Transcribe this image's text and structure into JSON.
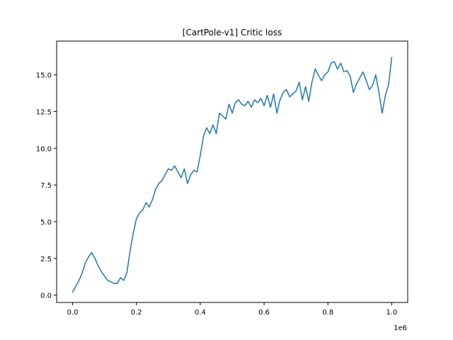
{
  "chart_data": {
    "type": "line",
    "title": "[CartPole-v1] Critic loss",
    "xlabel": "",
    "ylabel": "",
    "x_offset_label": "1e6",
    "xlim": [
      -0.05,
      1.05
    ],
    "ylim": [
      -0.5,
      17.3
    ],
    "xticks": [
      0.0,
      0.2,
      0.4,
      0.6,
      0.8,
      1.0
    ],
    "xtick_labels": [
      "0.0",
      "0.2",
      "0.4",
      "0.6",
      "0.8",
      "1.0"
    ],
    "yticks": [
      0.0,
      2.5,
      5.0,
      7.5,
      10.0,
      12.5,
      15.0
    ],
    "ytick_labels": [
      "0.0",
      "2.5",
      "5.0",
      "7.5",
      "10.0",
      "12.5",
      "15.0"
    ],
    "grid": false,
    "series": [
      {
        "name": "",
        "color": "#1f77b4",
        "x": [
          0.0,
          0.01,
          0.02,
          0.03,
          0.04,
          0.05,
          0.06,
          0.07,
          0.08,
          0.09,
          0.1,
          0.11,
          0.12,
          0.13,
          0.14,
          0.15,
          0.16,
          0.17,
          0.18,
          0.19,
          0.2,
          0.21,
          0.22,
          0.23,
          0.24,
          0.25,
          0.26,
          0.27,
          0.28,
          0.29,
          0.3,
          0.31,
          0.32,
          0.33,
          0.34,
          0.35,
          0.36,
          0.37,
          0.38,
          0.39,
          0.4,
          0.41,
          0.42,
          0.43,
          0.44,
          0.45,
          0.46,
          0.47,
          0.48,
          0.49,
          0.5,
          0.51,
          0.52,
          0.53,
          0.54,
          0.55,
          0.56,
          0.57,
          0.58,
          0.59,
          0.6,
          0.61,
          0.62,
          0.63,
          0.64,
          0.65,
          0.66,
          0.67,
          0.68,
          0.69,
          0.7,
          0.71,
          0.72,
          0.73,
          0.74,
          0.75,
          0.76,
          0.77,
          0.78,
          0.79,
          0.8,
          0.81,
          0.82,
          0.83,
          0.84,
          0.85,
          0.86,
          0.87,
          0.88,
          0.89,
          0.9,
          0.91,
          0.92,
          0.93,
          0.94,
          0.95,
          0.96,
          0.97,
          0.98,
          0.99,
          1.0
        ],
        "values": [
          0.2,
          0.6,
          1.0,
          1.5,
          2.2,
          2.6,
          2.9,
          2.5,
          2.0,
          1.6,
          1.3,
          1.0,
          0.9,
          0.8,
          0.8,
          1.2,
          1.0,
          1.5,
          3.0,
          4.2,
          5.2,
          5.6,
          5.8,
          6.3,
          6.0,
          6.5,
          7.2,
          7.6,
          7.8,
          8.2,
          8.6,
          8.5,
          8.8,
          8.4,
          8.0,
          8.6,
          7.6,
          8.2,
          8.5,
          8.4,
          9.5,
          10.8,
          11.4,
          11.0,
          11.6,
          11.0,
          12.4,
          12.2,
          12.0,
          13.0,
          12.4,
          13.1,
          13.3,
          13.0,
          12.9,
          13.2,
          12.8,
          13.3,
          13.1,
          13.4,
          12.9,
          13.6,
          12.8,
          13.7,
          12.4,
          13.3,
          13.8,
          14.0,
          13.5,
          13.7,
          13.9,
          14.5,
          13.3,
          14.2,
          13.2,
          14.5,
          15.4,
          15.0,
          14.6,
          15.0,
          15.2,
          15.8,
          15.9,
          15.4,
          15.8,
          15.2,
          15.3,
          14.9,
          13.8,
          14.4,
          14.8,
          15.2,
          14.6,
          14.0,
          14.3,
          15.0,
          13.8,
          12.4,
          13.6,
          14.3,
          16.2
        ]
      }
    ]
  }
}
